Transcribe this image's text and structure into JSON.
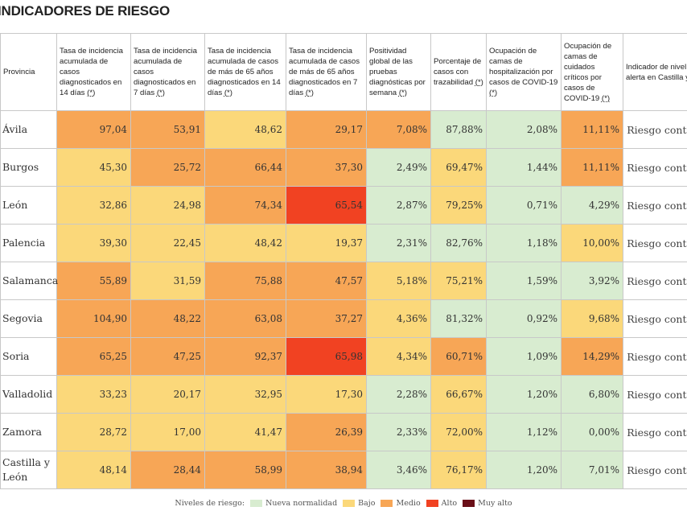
{
  "title": "INDICADORES DE RIESGO",
  "colors": {
    "nueva": "#d8ecd0",
    "bajo": "#fbd87a",
    "medio": "#f7a656",
    "alto": "#f14222",
    "muy_alto": "#6a0f18"
  },
  "headers": [
    {
      "text": "Provincia",
      "star": ""
    },
    {
      "text": "Tasa de incidencia acumulada de casos diagnosticados en 14 días",
      "star": "(*)"
    },
    {
      "text": "Tasa de incidencia acumulada de casos diagnosticados en 7 días",
      "star": "(*)"
    },
    {
      "text": "Tasa de incidencia acumulada de casos de más de 65 años diagnosticados en 14 días",
      "star": "(*)"
    },
    {
      "text": "Tasa de incidencia acumulada de casos de más de 65 años diagnosticados en 7 días",
      "star": "(*)"
    },
    {
      "text": "Positividad global de las pruebas diagnósticas por semana",
      "star": "(*)"
    },
    {
      "text": "Porcentaje de casos con trazabilidad",
      "star": "(*)"
    },
    {
      "text": "Ocupación de camas de hospitalización por casos de COVID-19",
      "star": "(*)"
    },
    {
      "text": "Ocupación de camas de cuidados críticos por casos de COVID-19",
      "star": "(*)"
    },
    {
      "text": "Indicador de nivel de alerta en Castilla y León",
      "star": ""
    }
  ],
  "rows": [
    {
      "provincia": "Ávila",
      "alerta": "Riesgo controlado",
      "values": [
        "97,04",
        "53,91",
        "48,62",
        "29,17",
        "7,08%",
        "87,88%",
        "2,08%",
        "11,11%"
      ],
      "levels": [
        "medio",
        "medio",
        "bajo",
        "medio",
        "medio",
        "nueva",
        "nueva",
        "medio"
      ]
    },
    {
      "provincia": "Burgos",
      "alerta": "Riesgo controlado",
      "values": [
        "45,30",
        "25,72",
        "66,44",
        "37,30",
        "2,49%",
        "69,47%",
        "1,44%",
        "11,11%"
      ],
      "levels": [
        "bajo",
        "medio",
        "medio",
        "medio",
        "nueva",
        "bajo",
        "nueva",
        "medio"
      ]
    },
    {
      "provincia": "León",
      "alerta": "Riesgo controlado",
      "values": [
        "32,86",
        "24,98",
        "74,34",
        "65,54",
        "2,87%",
        "79,25%",
        "0,71%",
        "4,29%"
      ],
      "levels": [
        "bajo",
        "bajo",
        "medio",
        "alto",
        "nueva",
        "bajo",
        "nueva",
        "nueva"
      ]
    },
    {
      "provincia": "Palencia",
      "alerta": "Riesgo controlado",
      "values": [
        "39,30",
        "22,45",
        "48,42",
        "19,37",
        "2,31%",
        "82,76%",
        "1,18%",
        "10,00%"
      ],
      "levels": [
        "bajo",
        "bajo",
        "bajo",
        "bajo",
        "nueva",
        "nueva",
        "nueva",
        "bajo"
      ]
    },
    {
      "provincia": "Salamanca",
      "alerta": "Riesgo controlado",
      "values": [
        "55,89",
        "31,59",
        "75,88",
        "47,57",
        "5,18%",
        "75,21%",
        "1,59%",
        "3,92%"
      ],
      "levels": [
        "medio",
        "bajo",
        "medio",
        "medio",
        "bajo",
        "bajo",
        "nueva",
        "nueva"
      ]
    },
    {
      "provincia": "Segovia",
      "alerta": "Riesgo controlado",
      "values": [
        "104,90",
        "48,22",
        "63,08",
        "37,27",
        "4,36%",
        "81,32%",
        "0,92%",
        "9,68%"
      ],
      "levels": [
        "medio",
        "medio",
        "medio",
        "medio",
        "bajo",
        "nueva",
        "nueva",
        "bajo"
      ]
    },
    {
      "provincia": "Soria",
      "alerta": "Riesgo controlado",
      "values": [
        "65,25",
        "47,25",
        "92,37",
        "65,98",
        "4,34%",
        "60,71%",
        "1,09%",
        "14,29%"
      ],
      "levels": [
        "medio",
        "medio",
        "medio",
        "alto",
        "bajo",
        "medio",
        "nueva",
        "medio"
      ]
    },
    {
      "provincia": "Valladolid",
      "alerta": "Riesgo controlado",
      "values": [
        "33,23",
        "20,17",
        "32,95",
        "17,30",
        "2,28%",
        "66,67%",
        "1,20%",
        "6,80%"
      ],
      "levels": [
        "bajo",
        "bajo",
        "bajo",
        "bajo",
        "nueva",
        "bajo",
        "nueva",
        "nueva"
      ]
    },
    {
      "provincia": "Zamora",
      "alerta": "Riesgo controlado",
      "values": [
        "28,72",
        "17,00",
        "41,47",
        "26,39",
        "2,33%",
        "72,00%",
        "1,12%",
        "0,00%"
      ],
      "levels": [
        "bajo",
        "bajo",
        "bajo",
        "medio",
        "nueva",
        "bajo",
        "nueva",
        "nueva"
      ]
    },
    {
      "provincia": "Castilla y León",
      "alerta": "Riesgo controlado",
      "values": [
        "48,14",
        "28,44",
        "58,99",
        "38,94",
        "3,46%",
        "76,17%",
        "1,20%",
        "7,01%"
      ],
      "levels": [
        "bajo",
        "medio",
        "medio",
        "medio",
        "nueva",
        "bajo",
        "nueva",
        "nueva"
      ]
    }
  ],
  "legend": {
    "label": "Niveles de riesgo:",
    "items": [
      {
        "key": "nueva",
        "label": "Nueva normalidad"
      },
      {
        "key": "bajo",
        "label": "Bajo"
      },
      {
        "key": "medio",
        "label": "Medio"
      },
      {
        "key": "alto",
        "label": "Alto"
      },
      {
        "key": "muy_alto",
        "label": "Muy alto"
      }
    ]
  }
}
